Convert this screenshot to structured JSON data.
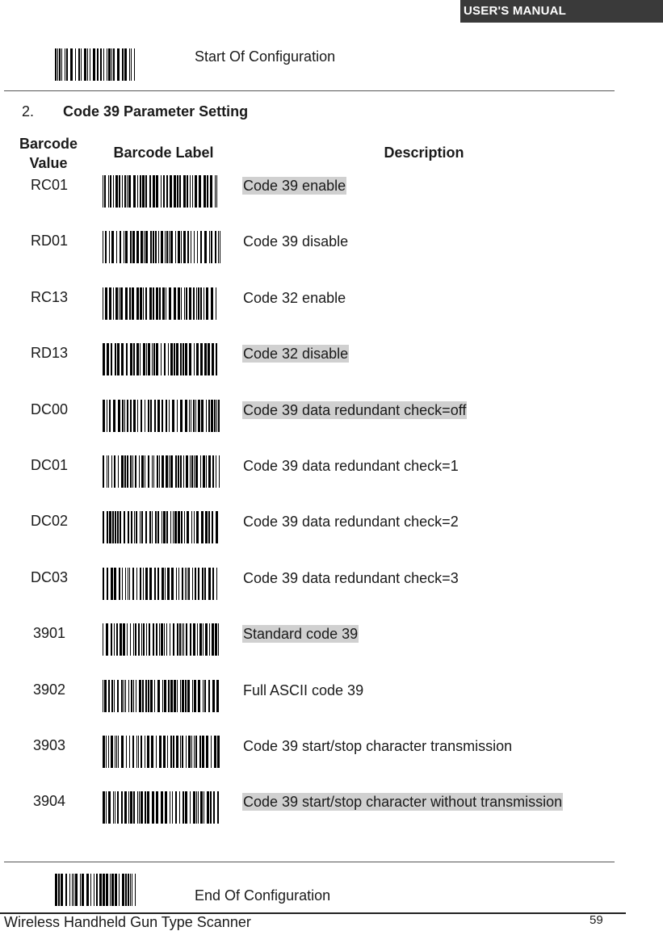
{
  "header": {
    "badge": "USER'S MANUAL"
  },
  "start_config": {
    "label": "Start Of Configuration"
  },
  "section": {
    "number": "2.",
    "title": "Code 39 Parameter Setting"
  },
  "table": {
    "headers": {
      "value": "Barcode Value",
      "label": "Barcode Label",
      "description": "Description"
    },
    "rows": [
      {
        "value": "RC01",
        "description": "Code 39 enable",
        "highlighted": true
      },
      {
        "value": "RD01",
        "description": "Code 39 disable",
        "highlighted": false
      },
      {
        "value": "RC13",
        "description": "Code 32 enable",
        "highlighted": false
      },
      {
        "value": "RD13",
        "description": "Code 32 disable",
        "highlighted": true
      },
      {
        "value": "DC00",
        "description": "Code 39 data redundant check=off",
        "highlighted": true
      },
      {
        "value": "DC01",
        "description": "Code 39 data redundant check=1",
        "highlighted": false
      },
      {
        "value": "DC02",
        "description": "Code 39 data redundant check=2",
        "highlighted": false
      },
      {
        "value": "DC03",
        "description": "Code 39 data redundant check=3",
        "highlighted": false
      },
      {
        "value": "3901",
        "description": "Standard code 39",
        "highlighted": true
      },
      {
        "value": "3902",
        "description": "Full ASCII code 39",
        "highlighted": false
      },
      {
        "value": "3903",
        "description": "Code 39 start/stop character transmission",
        "highlighted": false
      },
      {
        "value": "3904",
        "description": "Code 39 start/stop character without transmission",
        "highlighted": true
      }
    ]
  },
  "end_config": {
    "label": "End Of Configuration"
  },
  "footer": {
    "title": "Wireless Handheld Gun Type Scanner",
    "page": "59"
  },
  "colors": {
    "highlight": "#d0d0d0",
    "header_badge": "#3a3a3a"
  }
}
